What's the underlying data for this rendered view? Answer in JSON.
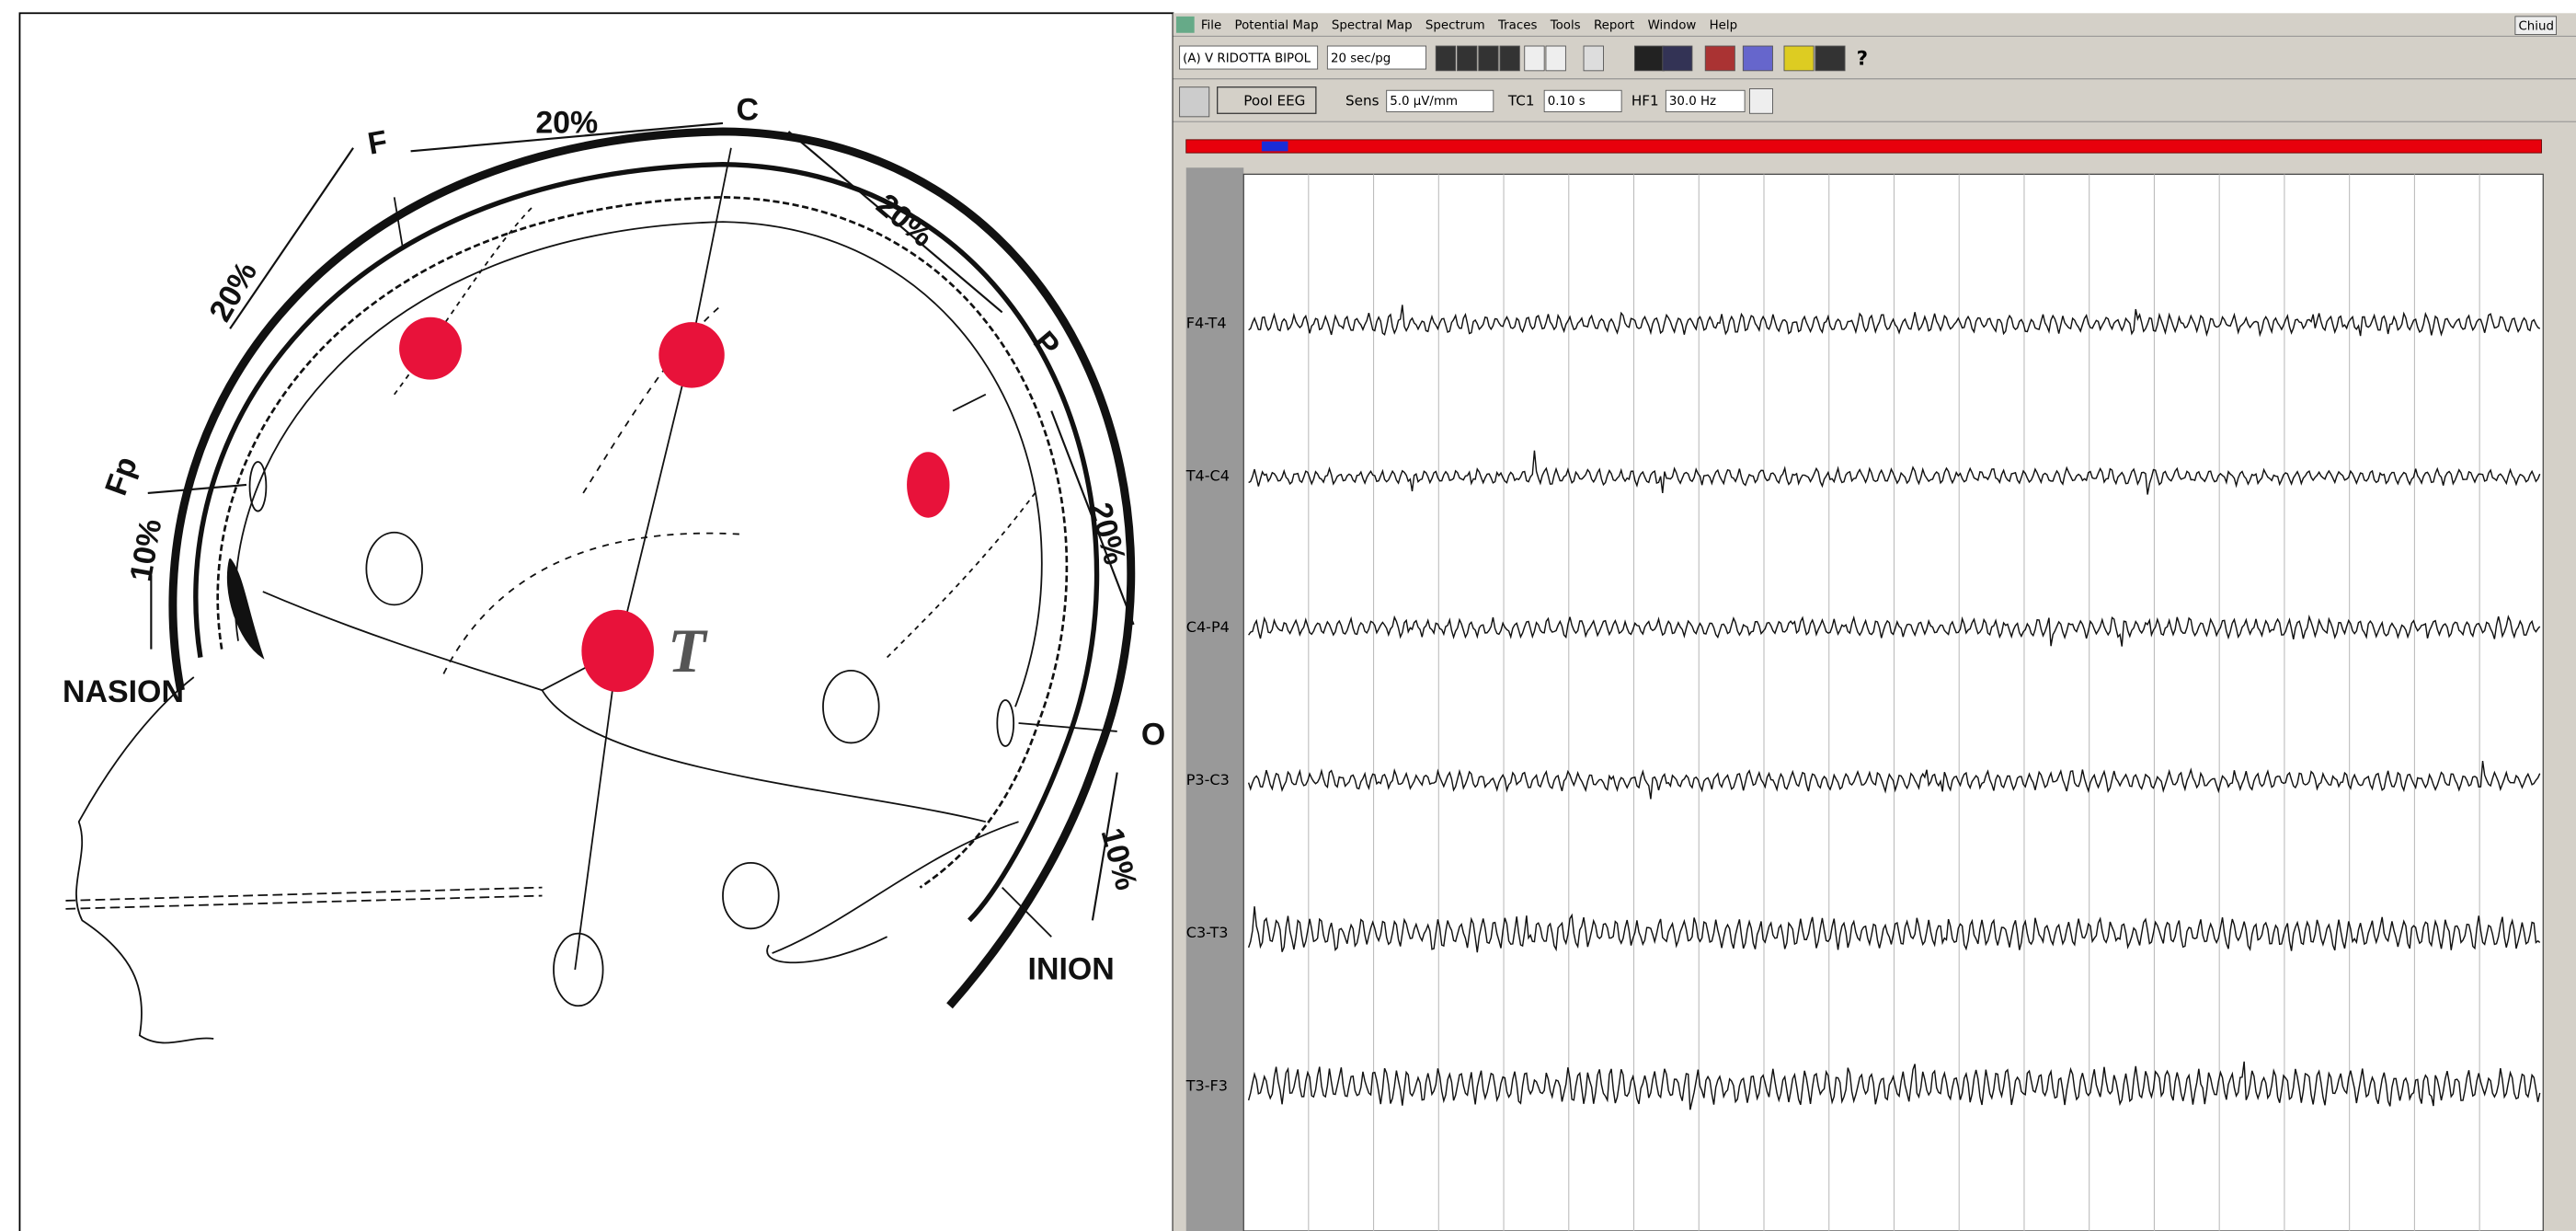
{
  "diagram": {
    "labels": [
      "F",
      "20%",
      "C",
      "20%",
      "20%",
      "Fp",
      "10%",
      "NASION",
      "P",
      "20%",
      "O",
      "10%",
      "INION",
      "T"
    ]
  },
  "app": {
    "menu": [
      "File",
      "Potential Map",
      "Spectral Map",
      "Spectrum",
      "Traces",
      "Tools",
      "Report",
      "Window",
      "Help"
    ],
    "close_button": "Chiud",
    "toolbar": {
      "montage": "(A) V RIDOTTA BIPOL",
      "page_time": "20 sec/pg",
      "help": "?",
      "pool": "Pool EEG",
      "sens_label": "Sens",
      "sens": "5.0 µV/mm",
      "tc_label": "TC1",
      "tc": "0.10 s",
      "hf_label": "HF1",
      "hf": "30.0 Hz"
    },
    "channels": [
      "F4-T4",
      "T4-C4",
      "C4-P4",
      "P3-C3",
      "C3-T3",
      "T3-F3"
    ]
  }
}
